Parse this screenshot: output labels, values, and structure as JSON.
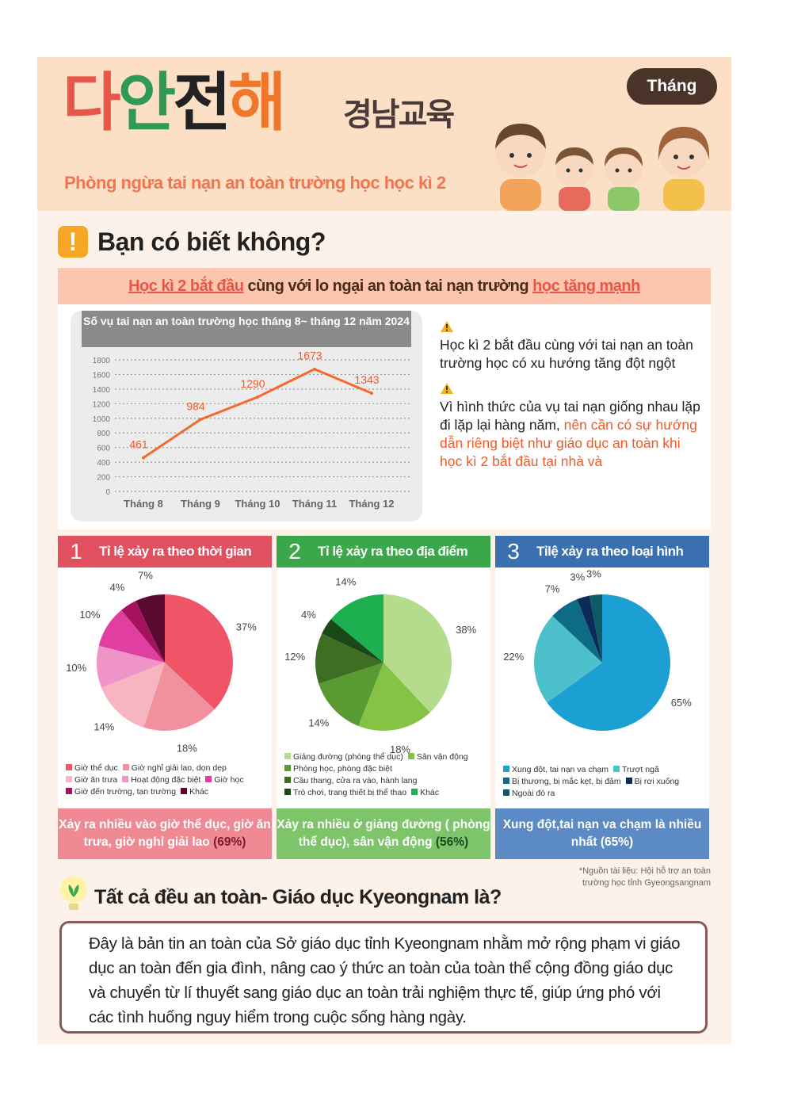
{
  "header": {
    "logo_part1": "다",
    "logo_part2": "안",
    "logo_part3": "전",
    "logo_part4": "해",
    "logo_sub": "경남교육",
    "subtitle": "Phòng ngừa tai nạn an toàn trường học học kì 2",
    "month_badge": "Tháng"
  },
  "section1": {
    "title": "Bạn có biết không?",
    "banner_hl1": "Học kì 2 bắt đầu",
    "banner_mid": " cùng với lo ngại an toàn tai nạn trường ",
    "banner_hl2": "học tăng mạnh",
    "right_p1": "Học kì 2 bắt đầu cùng với tai  nạn an toàn trường học có xu hướng tăng đột ngột",
    "right_p2_a": "Vì hình thức của vụ tai nạn giống nhau lặp đi lặp lại hàng năm, ",
    "right_p2_b": "nên cần có sự hướng dẫn riêng biệt như giáo dục an toàn khi học kì 2 bắt đầu tại nhà và"
  },
  "panels": [
    {
      "num": "1",
      "title": "Tỉ lệ xảy ra theo thời gian",
      "color": "#e0505e",
      "foot_bg": "#ef8a94",
      "foot_text": "Xảy ra nhiều vào giờ thể dục, giờ ăn trưa, giờ nghỉ giải lao ",
      "foot_hl": "(69%)",
      "foot_color": "#ffffff",
      "foot_hl_color": "#7a1a2a"
    },
    {
      "num": "2",
      "title": "Tỉ lệ xảy ra theo địa điểm",
      "color": "#3aa84a",
      "foot_bg": "#7dc46a",
      "foot_text": "Xảy ra nhiều ở giảng đường ( phòng thể dục), sân vận động ",
      "foot_hl": "(56%)",
      "foot_color": "#ffffff",
      "foot_hl_color": "#1a4a1a"
    },
    {
      "num": "3",
      "title": "Tỉlệ xảy ra theo loại hình",
      "color": "#3a6fb0",
      "foot_bg": "#5b8ac4",
      "foot_text": "Xung đột,tai nạn va chạm là nhiều nhất ",
      "foot_hl": "(65%)",
      "foot_color": "#ffffff",
      "foot_hl_color": "#ffffff"
    }
  ],
  "source": "*Nguồn tài liệu: Hội hỗ trợ an toàn trường học tỉnh Gyeongsangnam",
  "section2": {
    "title": "Tất cả đều an toàn- Giáo dục Kyeongnam là?",
    "desc": "Đây là bản tin an toàn của Sở giáo dục tỉnh Kyeongnam nhằm mở rộng phạm vi giáo dục an toàn đến gia đình, nâng cao ý thức an toàn của toàn thể cộng đồng giáo dục và chuyển từ lí thuyết sang giáo dục an toàn trải nghiệm thực tế, giúp ứng phó với các tình huống nguy hiểm trong cuộc sống hàng ngày."
  },
  "chart_data": [
    {
      "type": "line",
      "title": "Số vụ tai nạn an toàn trường học tháng 8~ tháng 12 năm 2024",
      "categories": [
        "Tháng 8",
        "Tháng 9",
        "Tháng 10",
        "Tháng 11",
        "Tháng 12"
      ],
      "values": [
        461,
        984,
        1290,
        1673,
        1343
      ],
      "yticks": [
        "0",
        "200",
        "400",
        "600",
        "800",
        "1000",
        "1200",
        "1400",
        "1600",
        "1800"
      ],
      "ylim": [
        0,
        1800
      ],
      "color": "#f56a2c",
      "grid": true
    },
    {
      "type": "pie",
      "slices": [
        {
          "label": "Giờ thể dục",
          "value": 37,
          "text": "37%",
          "color": "#ef5566"
        },
        {
          "label": "Giờ nghỉ giải lao, dọn dẹp",
          "value": 18,
          "text": "18%",
          "color": "#f2919e"
        },
        {
          "label": "Giờ ăn trưa",
          "value": 14,
          "text": "14%",
          "color": "#f6b5c1"
        },
        {
          "label": "Hoạt động đặc biệt",
          "value": 10,
          "text": "10%",
          "color": "#ee94c6"
        },
        {
          "label": "Giờ học",
          "value": 10,
          "text": "10%",
          "color": "#e03ea0"
        },
        {
          "label": "Giờ đến trường, tan trường",
          "value": 4,
          "text": "4%",
          "color": "#a6125e"
        },
        {
          "label": "Khác",
          "value": 7,
          "text": "7%",
          "color": "#5a0a30"
        }
      ],
      "legend": [
        "Giờ thể dục",
        "Giờ nghỉ giải lao, dọn dẹp",
        "Giờ ăn trưa",
        "Hoạt động đặc biệt",
        "Giờ học",
        "Giờ đến trường, tan trường",
        "Khác"
      ]
    },
    {
      "type": "pie",
      "slices": [
        {
          "label": "Giảng đường (phòng thể dục)",
          "value": 38,
          "text": "38%",
          "color": "#b4dc8c"
        },
        {
          "label": "Sân vận động",
          "value": 18,
          "text": "18%",
          "color": "#86c344"
        },
        {
          "label": "Phòng học, phòng đặc biệt",
          "value": 14,
          "text": "14%",
          "color": "#5a9a32"
        },
        {
          "label": "Cầu thang, cửa ra vào, hành lang",
          "value": 12,
          "text": "12%",
          "color": "#3d6e22"
        },
        {
          "label": "Trò chơi, trang thiết bị thể thao",
          "value": 4,
          "text": "4%",
          "color": "#1a4818"
        },
        {
          "label": "Khác",
          "value": 14,
          "text": "14%",
          "color": "#1eaf50"
        }
      ],
      "legend": [
        "Giảng đường (phòng thể dục)",
        "Sân vận động",
        "Phòng học, phòng đặc biệt",
        "Cầu thang, cửa ra vào, hành lang",
        "Trò chơi, trang thiết bị thể thao",
        "Khác"
      ]
    },
    {
      "type": "pie",
      "slices": [
        {
          "label": "Xung đột, tai nạn va chạm",
          "value": 65,
          "text": "65%",
          "color": "#1c9fd2"
        },
        {
          "label": "Trượt ngã",
          "value": 22,
          "text": "22%",
          "color": "#4cc1cc"
        },
        {
          "label": "Bị thương, bị mắc kẹt, bị đâm",
          "value": 7,
          "text": "7%",
          "color": "#0d6b86"
        },
        {
          "label": "Bị rơi xuống",
          "value": 3,
          "text": "3%",
          "color": "#0e2a58"
        },
        {
          "label": "Ngoài đó ra",
          "value": 3,
          "text": "3%",
          "color": "#0d5a66"
        }
      ],
      "legend": [
        "Xung đột, tai nạn va chạm",
        "Trượt ngã",
        "Bị thương, bị mắc kẹt, bị đâm",
        "Bị rơi xuống",
        "Ngoài đó ra"
      ]
    }
  ]
}
